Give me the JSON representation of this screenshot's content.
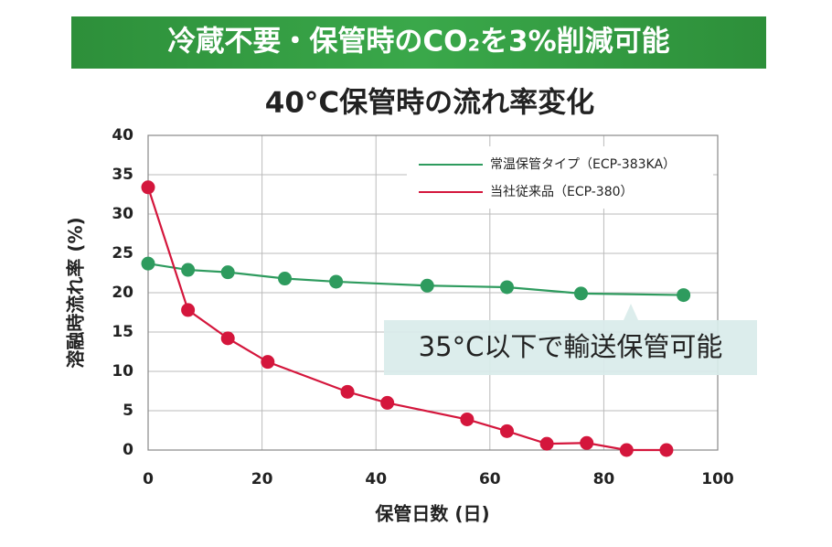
{
  "chart_data": {
    "type": "line",
    "banner": "冷蔵不要・保管時のCO₂を3%削減可能",
    "title": "40°C保管時の流れ率変化",
    "x_label": "保管日数 (日)",
    "y_label": "溶融時流れ率 (%)",
    "annotation": "35°C以下で輸送保管可能",
    "xlim": [
      0,
      100
    ],
    "xticks": [
      0,
      20,
      40,
      60,
      80,
      100
    ],
    "ylim": [
      0,
      40
    ],
    "yticks": [
      0,
      5,
      10,
      15,
      20,
      25,
      30,
      35,
      40
    ],
    "grid": true,
    "legend": "upper right",
    "series": [
      {
        "name": "常温保管タイプ（ECP-383KA）",
        "color": "#2e9b5e",
        "x": [
          0,
          7,
          14,
          24,
          33,
          49,
          63,
          76,
          94
        ],
        "values": [
          23.7,
          22.9,
          22.6,
          21.8,
          21.4,
          20.9,
          20.7,
          19.9,
          19.7
        ]
      },
      {
        "name": "当社従来品（ECP-380）",
        "color": "#d4163c",
        "x": [
          0,
          7,
          14,
          21,
          35,
          42,
          56,
          63,
          70,
          77,
          84,
          91
        ],
        "values": [
          33.4,
          17.8,
          14.2,
          11.2,
          7.4,
          6.0,
          3.9,
          2.4,
          0.8,
          0.9,
          0,
          0
        ]
      }
    ]
  }
}
